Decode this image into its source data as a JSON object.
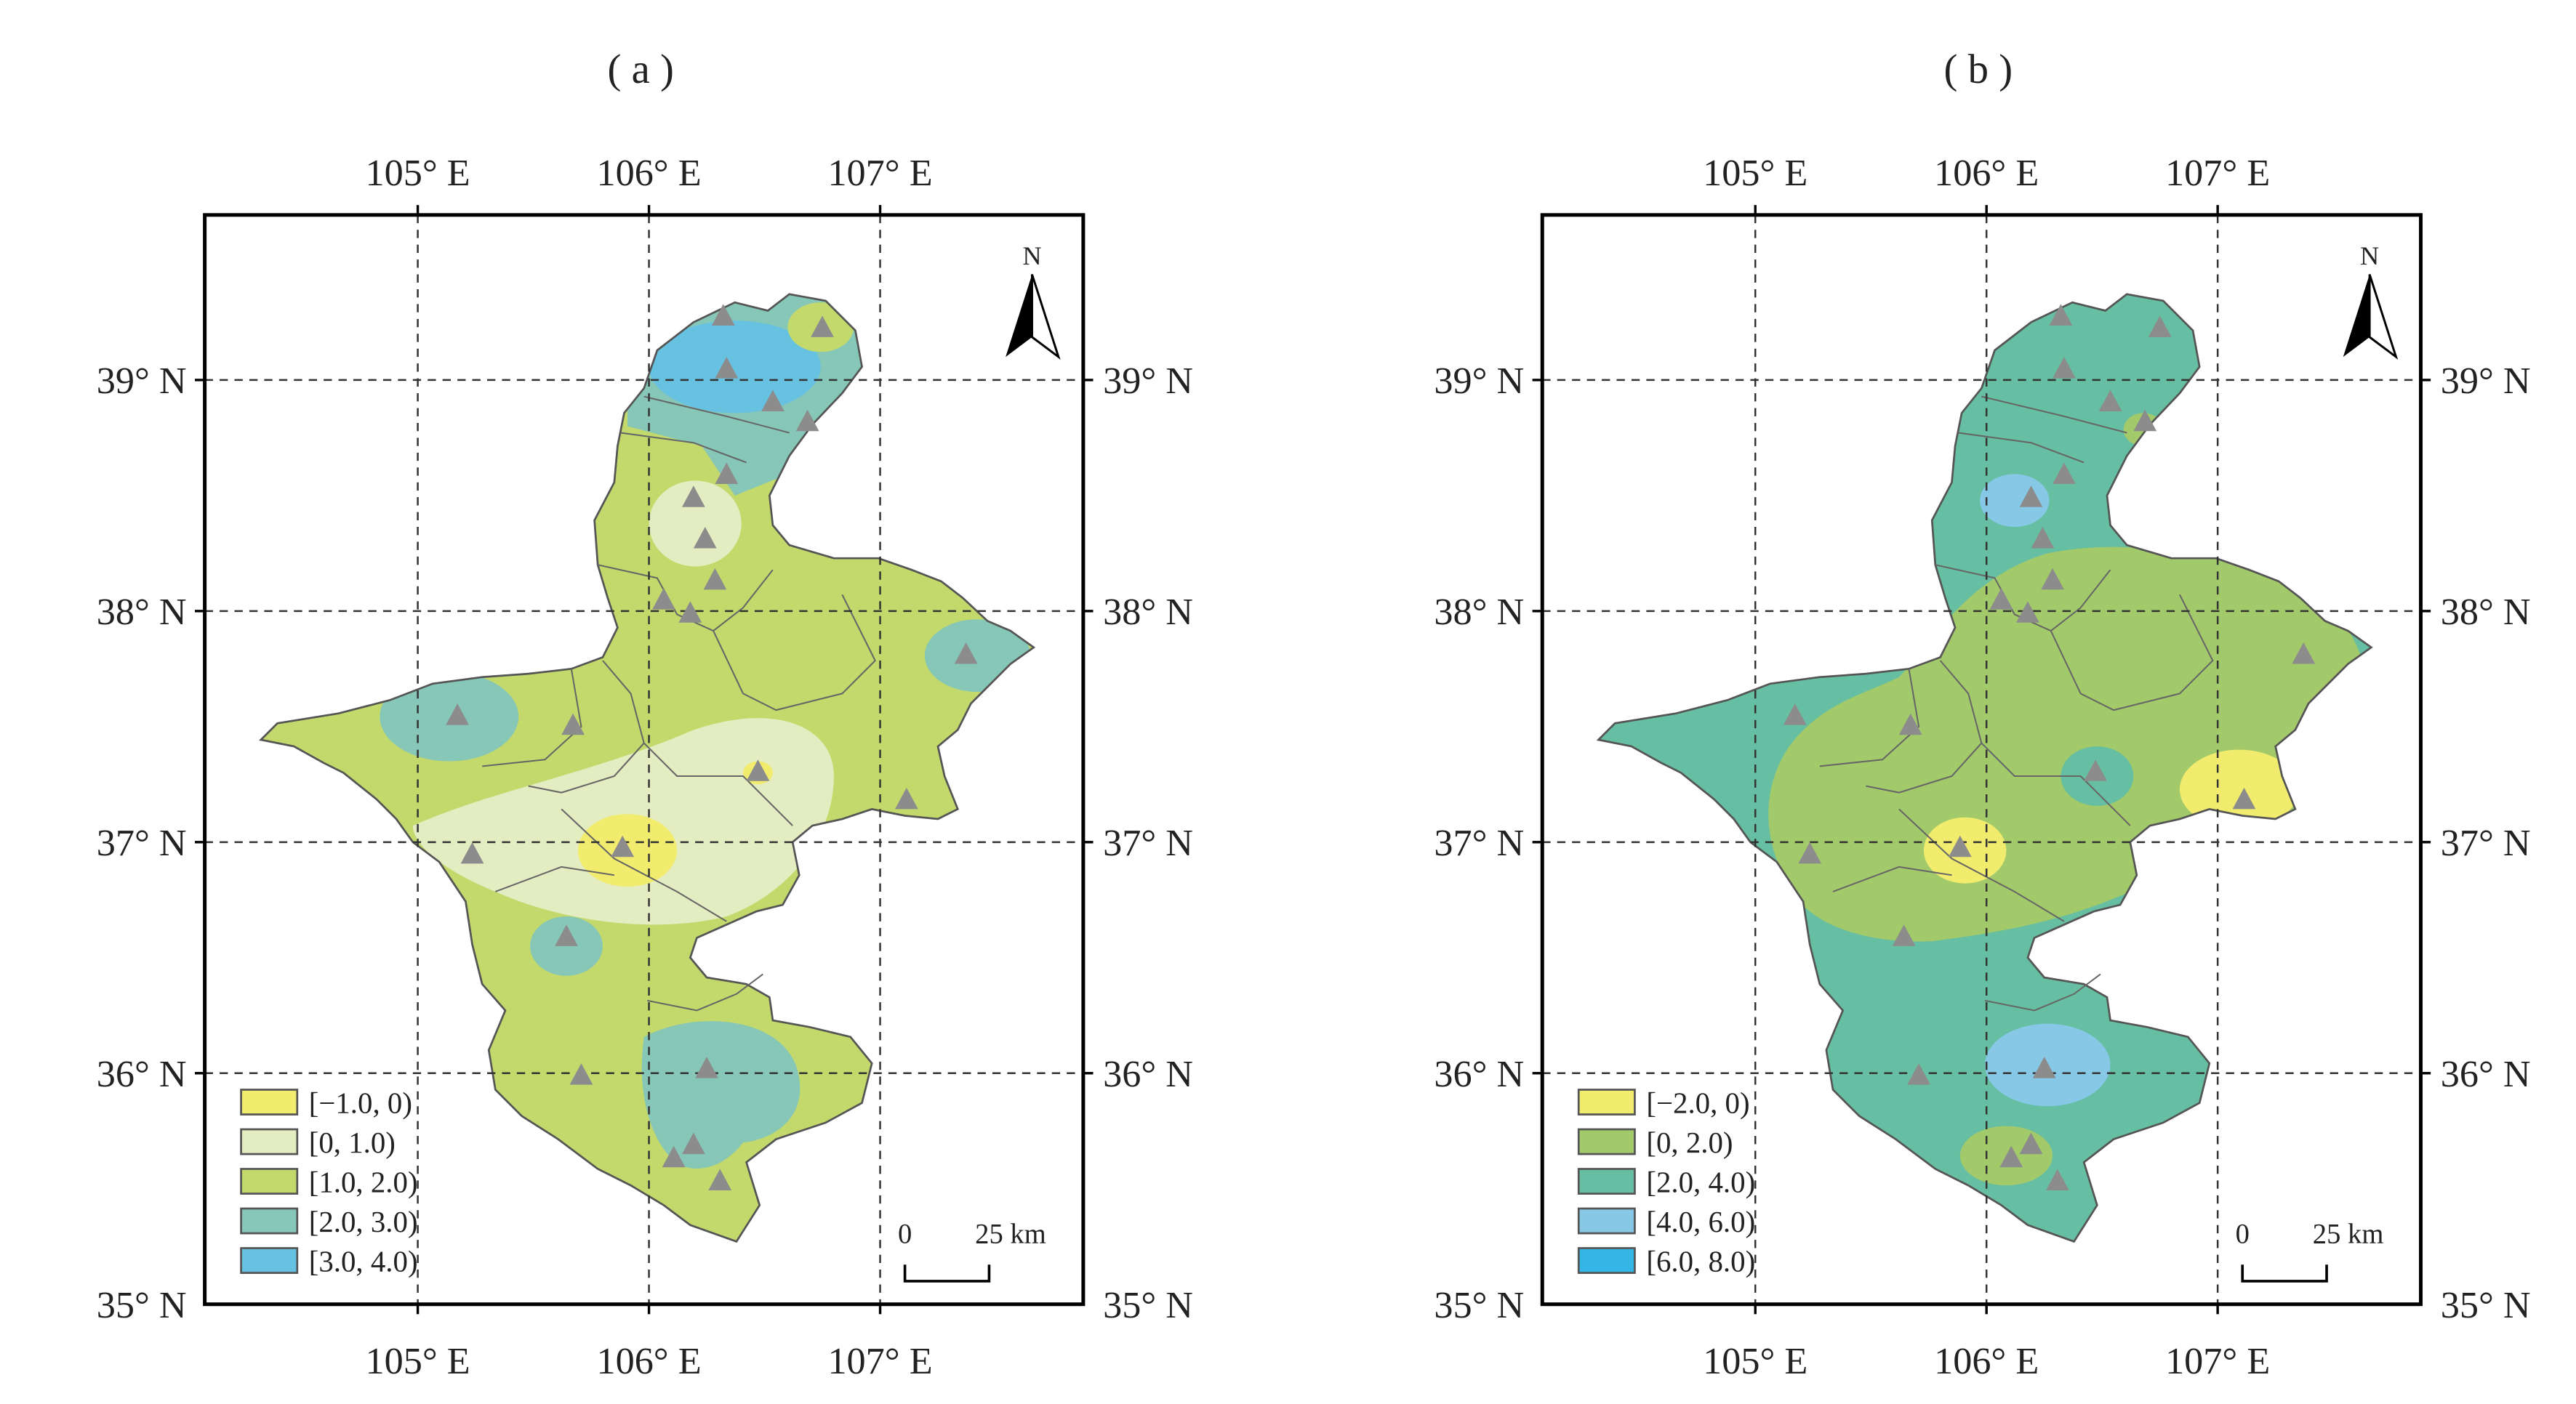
{
  "panels": [
    {
      "id": "a",
      "label": "( a )",
      "top_lon_labels": [
        "105° E",
        "106° E",
        "107° E"
      ],
      "bottom_lon_labels": [
        "105° E",
        "106° E",
        "107° E"
      ],
      "left_lat_labels": [
        "39° N",
        "38° N",
        "37° N",
        "36° N",
        "35° N"
      ],
      "right_lat_labels": [
        "39° N",
        "38° N",
        "37° N",
        "36° N",
        "35° N"
      ],
      "north_label": "N",
      "scale_zero": "0",
      "scale_label": "25 km",
      "legend": [
        {
          "label": "[−1.0, 0)",
          "color": "#f2ec6e"
        },
        {
          "label": "[0, 1.0)",
          "color": "#e3edc1"
        },
        {
          "label": "[1.0, 2.0)",
          "color": "#c3d96b"
        },
        {
          "label": "[2.0, 3.0)",
          "color": "#86c7b8"
        },
        {
          "label": "[3.0, 4.0)",
          "color": "#67c1e0"
        }
      ]
    },
    {
      "id": "b",
      "label": "( b )",
      "top_lon_labels": [
        "105° E",
        "106° E",
        "107° E"
      ],
      "bottom_lon_labels": [
        "105° E",
        "106° E",
        "107° E"
      ],
      "left_lat_labels": [
        "39° N",
        "38° N",
        "37° N",
        "36° N",
        "35° N"
      ],
      "right_lat_labels": [
        "39° N",
        "38° N",
        "37° N",
        "36° N",
        "35° N"
      ],
      "north_label": "N",
      "scale_zero": "0",
      "scale_label": "25 km",
      "legend": [
        {
          "label": "[−2.0, 0)",
          "color": "#f2ec6e"
        },
        {
          "label": "[0, 2.0)",
          "color": "#a2ca6a"
        },
        {
          "label": "[2.0, 4.0)",
          "color": "#66bea3"
        },
        {
          "label": "[4.0, 6.0)",
          "color": "#86c8e6"
        },
        {
          "label": "[6.0, 8.0)",
          "color": "#33b5e5"
        }
      ]
    }
  ],
  "colors": {
    "station_marker": "#8c8c8c",
    "grid_line": "#333333",
    "frame": "#000000",
    "boundary": "#555555"
  },
  "icons": [
    "north-arrow-icon",
    "station-triangle-icon"
  ]
}
